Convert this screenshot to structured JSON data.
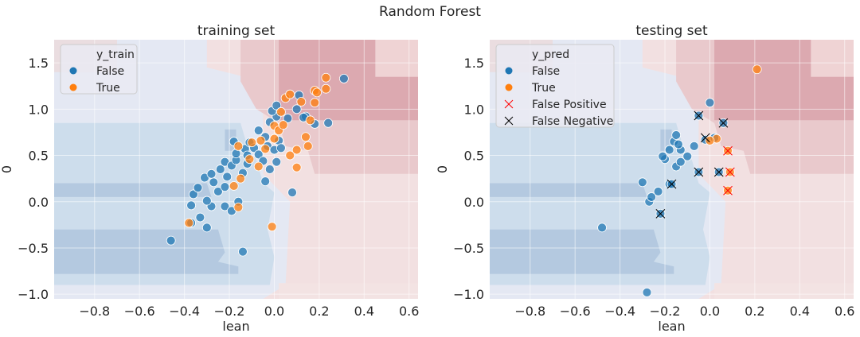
{
  "figure": {
    "suptitle": "Random Forest"
  },
  "chart_data": [
    {
      "type": "scatter",
      "title": "training set",
      "xlabel": "lean",
      "ylabel": "0",
      "xlim": [
        -0.98,
        0.64
      ],
      "ylim": [
        -1.05,
        1.75
      ],
      "xticks": [
        -0.8,
        -0.6,
        -0.4,
        -0.2,
        0.0,
        0.2,
        0.4,
        0.6
      ],
      "xtick_labels": [
        "−0.8",
        "−0.6",
        "−0.4",
        "−0.2",
        "0.0",
        "0.2",
        "0.4",
        "0.6"
      ],
      "yticks": [
        -1.0,
        -0.5,
        0.0,
        0.5,
        1.0,
        1.5
      ],
      "ytick_labels": [
        "−1.0",
        "−0.5",
        "0.0",
        "0.5",
        "1.0",
        "1.5"
      ],
      "grid": true,
      "background": "decision-boundary contour (blue = False, red = True)",
      "legend": {
        "placement": "upper-left",
        "title": "y_train",
        "entries": [
          {
            "label": "False",
            "color": "#1f77b4",
            "marker": "circle"
          },
          {
            "label": "True",
            "color": "#ff7f0e",
            "marker": "circle"
          }
        ]
      },
      "series": [
        {
          "name": "False",
          "color": "#1f77b4",
          "points": [
            [
              -0.46,
              -0.42
            ],
            [
              -0.37,
              -0.04
            ],
            [
              -0.37,
              -0.23
            ],
            [
              -0.33,
              -0.17
            ],
            [
              -0.3,
              -0.28
            ],
            [
              -0.28,
              -0.05
            ],
            [
              -0.22,
              -0.05
            ],
            [
              -0.3,
              0.01
            ],
            [
              -0.36,
              0.08
            ],
            [
              -0.34,
              0.15
            ],
            [
              -0.31,
              0.26
            ],
            [
              -0.27,
              0.21
            ],
            [
              -0.25,
              0.11
            ],
            [
              -0.22,
              0.16
            ],
            [
              -0.21,
              0.27
            ],
            [
              -0.24,
              0.35
            ],
            [
              -0.22,
              0.43
            ],
            [
              -0.19,
              0.39
            ],
            [
              -0.17,
              0.45
            ],
            [
              -0.14,
              0.31
            ],
            [
              -0.12,
              0.41
            ],
            [
              -0.17,
              0.52
            ],
            [
              -0.13,
              0.57
            ],
            [
              -0.11,
              0.64
            ],
            [
              -0.09,
              0.58
            ],
            [
              -0.07,
              0.51
            ],
            [
              -0.05,
              0.44
            ],
            [
              -0.03,
              0.6
            ],
            [
              0.0,
              0.56
            ],
            [
              0.02,
              0.66
            ],
            [
              0.03,
              0.58
            ],
            [
              -0.04,
              0.7
            ],
            [
              -0.07,
              0.77
            ],
            [
              -0.02,
              0.86
            ],
            [
              0.01,
              0.92
            ],
            [
              -0.01,
              0.98
            ],
            [
              0.01,
              1.04
            ],
            [
              0.06,
              0.9
            ],
            [
              0.1,
              1.0
            ],
            [
              0.14,
              0.92
            ],
            [
              0.18,
              0.84
            ],
            [
              0.24,
              0.85
            ],
            [
              0.11,
              1.15
            ],
            [
              0.13,
              0.91
            ],
            [
              0.31,
              1.33
            ],
            [
              -0.18,
              0.65
            ],
            [
              -0.04,
              0.22
            ],
            [
              -0.02,
              0.35
            ],
            [
              0.01,
              0.43
            ],
            [
              0.08,
              0.1
            ],
            [
              -0.14,
              -0.54
            ],
            [
              -0.19,
              -0.1
            ],
            [
              -0.16,
              0.0
            ],
            [
              -0.28,
              0.3
            ],
            [
              -0.12,
              0.5
            ]
          ]
        },
        {
          "name": "True",
          "color": "#ff7f0e",
          "points": [
            [
              -0.38,
              -0.23
            ],
            [
              -0.18,
              0.17
            ],
            [
              -0.15,
              0.25
            ],
            [
              -0.16,
              0.6
            ],
            [
              -0.1,
              0.64
            ],
            [
              -0.07,
              0.38
            ],
            [
              -0.04,
              0.57
            ],
            [
              0.0,
              0.68
            ],
            [
              0.0,
              0.82
            ],
            [
              0.02,
              0.77
            ],
            [
              0.04,
              0.83
            ],
            [
              0.07,
              0.5
            ],
            [
              0.1,
              0.56
            ],
            [
              0.1,
              0.37
            ],
            [
              0.14,
              0.7
            ],
            [
              0.16,
              0.88
            ],
            [
              0.18,
              1.07
            ],
            [
              0.18,
              1.2
            ],
            [
              0.19,
              1.18
            ],
            [
              0.23,
              1.22
            ],
            [
              0.23,
              1.34
            ],
            [
              0.05,
              1.12
            ],
            [
              0.07,
              1.16
            ],
            [
              -0.16,
              -0.06
            ],
            [
              -0.01,
              -0.27
            ],
            [
              0.15,
              0.6
            ],
            [
              0.03,
              0.97
            ],
            [
              -0.11,
              0.46
            ],
            [
              -0.06,
              0.66
            ],
            [
              0.12,
              1.08
            ]
          ]
        }
      ]
    },
    {
      "type": "scatter",
      "title": "testing set",
      "xlabel": "lean",
      "ylabel": "0",
      "xlim": [
        -0.98,
        0.64
      ],
      "ylim": [
        -1.05,
        1.75
      ],
      "xticks": [
        -0.8,
        -0.6,
        -0.4,
        -0.2,
        0.0,
        0.2,
        0.4,
        0.6
      ],
      "xtick_labels": [
        "−0.8",
        "−0.6",
        "−0.4",
        "−0.2",
        "0.0",
        "0.2",
        "0.4",
        "0.6"
      ],
      "yticks": [
        -1.0,
        -0.5,
        0.0,
        0.5,
        1.0,
        1.5
      ],
      "ytick_labels": [
        "−1.0",
        "−0.5",
        "0.0",
        "0.5",
        "1.0",
        "1.5"
      ],
      "grid": true,
      "background": "decision-boundary contour (blue = False, red = True)",
      "legend": {
        "placement": "upper-left",
        "title": "y_pred",
        "entries": [
          {
            "label": "False",
            "color": "#1f77b4",
            "marker": "circle"
          },
          {
            "label": "True",
            "color": "#ff7f0e",
            "marker": "circle"
          },
          {
            "label": "False Positive",
            "color": "#ff0000",
            "marker": "x"
          },
          {
            "label": "False Negative",
            "color": "#000000",
            "marker": "x"
          }
        ]
      },
      "series": [
        {
          "name": "False",
          "color": "#1f77b4",
          "points": [
            [
              -0.48,
              -0.28
            ],
            [
              -0.28,
              -0.98
            ],
            [
              -0.3,
              0.21
            ],
            [
              -0.27,
              0.0
            ],
            [
              -0.26,
              0.05
            ],
            [
              -0.23,
              0.11
            ],
            [
              -0.22,
              -0.13
            ],
            [
              -0.18,
              0.19
            ],
            [
              -0.17,
              0.19
            ],
            [
              -0.15,
              0.38
            ],
            [
              -0.2,
              0.46
            ],
            [
              -0.18,
              0.56
            ],
            [
              -0.16,
              0.65
            ],
            [
              -0.13,
              0.56
            ],
            [
              -0.15,
              0.72
            ],
            [
              -0.14,
              0.62
            ],
            [
              -0.1,
              0.49
            ],
            [
              -0.07,
              0.6
            ],
            [
              -0.05,
              0.32
            ],
            [
              -0.02,
              0.67
            ],
            [
              0.0,
              1.07
            ],
            [
              0.02,
              0.69
            ],
            [
              0.04,
              0.32
            ],
            [
              0.06,
              0.85
            ],
            [
              -0.05,
              0.93
            ],
            [
              -0.13,
              0.43
            ],
            [
              -0.21,
              0.49
            ]
          ]
        },
        {
          "name": "True",
          "color": "#ff7f0e",
          "points": [
            [
              0.03,
              0.68
            ],
            [
              0.0,
              0.66
            ],
            [
              0.08,
              0.55
            ],
            [
              0.09,
              0.32
            ],
            [
              0.08,
              0.12
            ],
            [
              0.21,
              1.43
            ]
          ]
        },
        {
          "name": "False Positive",
          "color": "#ff0000",
          "points": [
            [
              0.08,
              0.55
            ],
            [
              0.09,
              0.32
            ],
            [
              0.08,
              0.12
            ]
          ]
        },
        {
          "name": "False Negative",
          "color": "#000000",
          "points": [
            [
              -0.22,
              -0.13
            ],
            [
              -0.17,
              0.19
            ],
            [
              -0.05,
              0.32
            ],
            [
              -0.02,
              0.69
            ],
            [
              0.04,
              0.32
            ],
            [
              0.06,
              0.85
            ],
            [
              -0.05,
              0.93
            ]
          ]
        }
      ]
    }
  ]
}
